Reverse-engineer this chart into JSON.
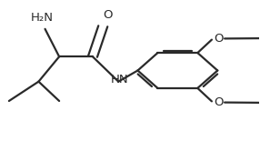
{
  "bg_color": "#ffffff",
  "line_color": "#2a2a2a",
  "line_width": 1.6,
  "figsize": [
    2.86,
    1.55
  ],
  "dpi": 100,
  "xlim": [
    0,
    1
  ],
  "ylim": [
    0,
    1
  ],
  "labels": {
    "nh2": "H₂N",
    "o": "O",
    "hn": "HN",
    "o_top": "O",
    "o_bot": "O"
  },
  "font_size": 9.5
}
